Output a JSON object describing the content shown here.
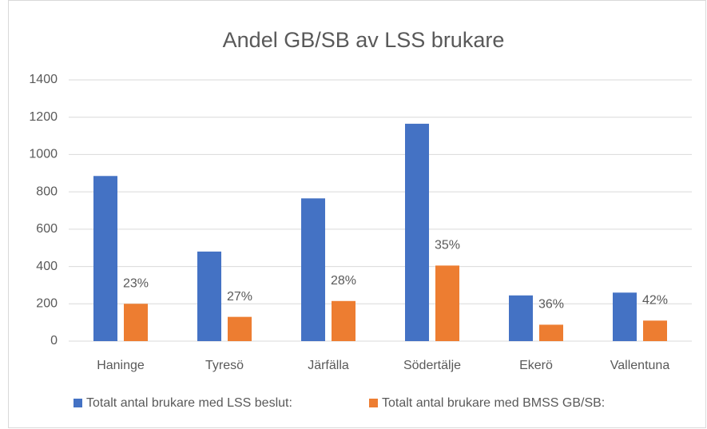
{
  "chart_data": {
    "type": "bar",
    "title": "Andel GB/SB av LSS brukare",
    "categories": [
      "Haninge",
      "Tyresö",
      "Järfälla",
      "Södertälje",
      "Ekerö",
      "Vallentuna"
    ],
    "series": [
      {
        "name": "Totalt antal brukare med LSS beslut:",
        "color": "#4472c4",
        "values": [
          885,
          480,
          765,
          1165,
          245,
          260
        ]
      },
      {
        "name": "Totalt antal brukare med BMSS GB/SB:",
        "color": "#ed7d31",
        "values": [
          200,
          130,
          215,
          405,
          88,
          110
        ]
      }
    ],
    "annotations": [
      "23%",
      "27%",
      "28%",
      "35%",
      "36%",
      "42%"
    ],
    "ylim": [
      0,
      1400
    ],
    "yticks": [
      0,
      200,
      400,
      600,
      800,
      1000,
      1200,
      1400
    ],
    "grid": true,
    "legend": "bottom"
  }
}
